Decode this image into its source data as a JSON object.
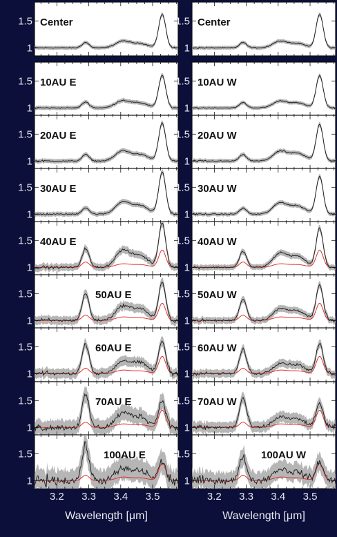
{
  "figure": {
    "background_color": "#0b0f3a",
    "plot_background": "#ffffff",
    "xlabel": "Wavelength [μm]",
    "xticks": [
      "3.2",
      "3.3",
      "3.4",
      "3.5"
    ],
    "yticks": [
      "1.5",
      "1"
    ]
  },
  "chart_data": {
    "type": "line",
    "xlabel": "Wavelength [μm]",
    "ylabel": "",
    "xlim": [
      3.13,
      3.58
    ],
    "ylim": [
      0.85,
      1.85
    ],
    "x_ticks": [
      3.2,
      3.3,
      3.4,
      3.5
    ],
    "y_ticks": [
      1,
      1.5
    ],
    "grid": false,
    "colors": {
      "observed": "#222222",
      "uncertainty": "#9e9e9e",
      "template": "#e0302a"
    },
    "features": {
      "pah_3_29": {
        "center": 3.29,
        "width": 0.011
      },
      "aliphatic_3_40": {
        "center": 3.405,
        "width": 0.022
      },
      "aliphatic_3_46": {
        "center": 3.46,
        "width": 0.026
      },
      "nd_3_53": {
        "center": 3.53,
        "width": 0.011
      }
    },
    "panels": [
      {
        "title": "Center",
        "column": 0,
        "row": 0,
        "amp_3_29": 0.1,
        "amp_3_40": 0.12,
        "amp_3_46": 0.08,
        "amp_3_53": 0.62,
        "noise": 0.01,
        "has_template": false
      },
      {
        "title": "Center",
        "column": 1,
        "row": 0,
        "amp_3_29": 0.1,
        "amp_3_40": 0.12,
        "amp_3_46": 0.08,
        "amp_3_53": 0.62,
        "noise": 0.01,
        "has_template": false
      },
      {
        "title": "10AU E",
        "column": 0,
        "row": 1,
        "amp_3_29": 0.11,
        "amp_3_40": 0.13,
        "amp_3_46": 0.09,
        "amp_3_53": 0.6,
        "noise": 0.012,
        "has_template": false
      },
      {
        "title": "10AU W",
        "column": 1,
        "row": 1,
        "amp_3_29": 0.1,
        "amp_3_40": 0.12,
        "amp_3_46": 0.09,
        "amp_3_53": 0.6,
        "noise": 0.01,
        "has_template": false
      },
      {
        "title": "20AU E",
        "column": 0,
        "row": 2,
        "amp_3_29": 0.12,
        "amp_3_40": 0.18,
        "amp_3_46": 0.12,
        "amp_3_53": 0.7,
        "noise": 0.013,
        "has_template": false
      },
      {
        "title": "20AU W",
        "column": 1,
        "row": 2,
        "amp_3_29": 0.12,
        "amp_3_40": 0.17,
        "amp_3_46": 0.14,
        "amp_3_53": 0.68,
        "noise": 0.012,
        "has_template": false
      },
      {
        "title": "30AU E",
        "column": 0,
        "row": 3,
        "amp_3_29": 0.12,
        "amp_3_40": 0.22,
        "amp_3_46": 0.16,
        "amp_3_53": 0.78,
        "noise": 0.014,
        "has_template": false
      },
      {
        "title": "30AU W",
        "column": 1,
        "row": 3,
        "amp_3_29": 0.11,
        "amp_3_40": 0.2,
        "amp_3_46": 0.15,
        "amp_3_53": 0.7,
        "noise": 0.012,
        "has_template": false
      },
      {
        "title": "40AU E",
        "column": 0,
        "row": 4,
        "amp_3_29": 0.35,
        "amp_3_40": 0.3,
        "amp_3_46": 0.22,
        "amp_3_53": 0.82,
        "noise": 0.025,
        "has_template": true
      },
      {
        "title": "40AU W",
        "column": 1,
        "row": 4,
        "amp_3_29": 0.3,
        "amp_3_40": 0.25,
        "amp_3_46": 0.2,
        "amp_3_53": 0.72,
        "noise": 0.018,
        "has_template": true
      },
      {
        "title": "50AU E",
        "column": 0,
        "row": 5,
        "amp_3_29": 0.5,
        "amp_3_40": 0.25,
        "amp_3_46": 0.22,
        "amp_3_53": 0.7,
        "noise": 0.03,
        "has_template": true
      },
      {
        "title": "50AU W",
        "column": 1,
        "row": 5,
        "amp_3_29": 0.4,
        "amp_3_40": 0.2,
        "amp_3_46": 0.18,
        "amp_3_53": 0.65,
        "noise": 0.022,
        "has_template": true
      },
      {
        "title": "60AU E",
        "column": 0,
        "row": 6,
        "amp_3_29": 0.55,
        "amp_3_40": 0.22,
        "amp_3_46": 0.2,
        "amp_3_53": 0.6,
        "noise": 0.035,
        "has_template": true
      },
      {
        "title": "60AU W",
        "column": 1,
        "row": 6,
        "amp_3_29": 0.45,
        "amp_3_40": 0.18,
        "amp_3_46": 0.16,
        "amp_3_53": 0.55,
        "noise": 0.028,
        "has_template": true
      },
      {
        "title": "70AU E",
        "column": 0,
        "row": 7,
        "amp_3_29": 0.6,
        "amp_3_40": 0.25,
        "amp_3_46": 0.2,
        "amp_3_53": 0.5,
        "noise": 0.06,
        "has_template": true
      },
      {
        "title": "70AU W",
        "column": 1,
        "row": 7,
        "amp_3_29": 0.55,
        "amp_3_40": 0.18,
        "amp_3_46": 0.15,
        "amp_3_53": 0.45,
        "noise": 0.04,
        "has_template": true
      },
      {
        "title": "100AU E",
        "column": 0,
        "row": 8,
        "amp_3_29": 0.65,
        "amp_3_40": 0.2,
        "amp_3_46": 0.18,
        "amp_3_53": 0.35,
        "noise": 0.09,
        "has_template": true
      },
      {
        "title": "100AU W",
        "column": 1,
        "row": 8,
        "amp_3_29": 0.45,
        "amp_3_40": 0.2,
        "amp_3_46": 0.15,
        "amp_3_53": 0.35,
        "noise": 0.07,
        "has_template": true
      }
    ],
    "template_shape": {
      "amp_3_29": 0.1,
      "amp_3_40": 0.06,
      "amp_3_46": 0.05,
      "amp_3_53": 0.32
    }
  }
}
